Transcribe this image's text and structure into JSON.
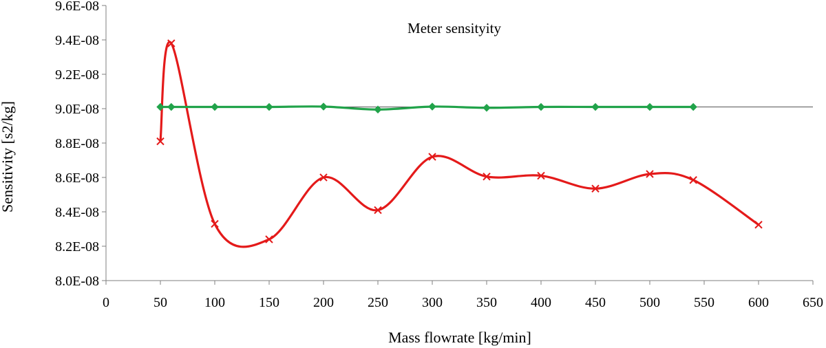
{
  "chart_data": {
    "type": "line",
    "title": "Meter sensityity",
    "xlabel": "Mass flowrate [kg/min]",
    "ylabel": "Sensitivity [s2/kg]",
    "xlim": [
      0,
      650
    ],
    "ylim": [
      8e-08,
      9.6e-08
    ],
    "x_ticks": [
      0,
      50,
      100,
      150,
      200,
      250,
      300,
      350,
      400,
      450,
      500,
      550,
      600,
      650
    ],
    "x_tick_labels": [
      "0",
      "50",
      "100",
      "150",
      "200",
      "250",
      "300",
      "350",
      "400",
      "450",
      "500",
      "550",
      "600",
      "650"
    ],
    "y_ticks": [
      8e-08,
      8.2e-08,
      8.4e-08,
      8.6e-08,
      8.8e-08,
      9e-08,
      9.2e-08,
      9.4e-08,
      9.6e-08
    ],
    "y_tick_labels": [
      "8.0E-08",
      "8.2E-08",
      "8.4E-08",
      "8.6E-08",
      "8.8E-08",
      "9.0E-08",
      "9.2E-08",
      "9.4E-08",
      "9.6E-08"
    ],
    "grid": false,
    "reference_line": {
      "y": 9.01e-08,
      "x_range": [
        50,
        650
      ],
      "color": "#555555"
    },
    "series": [
      {
        "color": "#e41a1a",
        "marker": "x",
        "smooth": true,
        "points": [
          {
            "x": 50,
            "y": 8.81e-08
          },
          {
            "x": 60,
            "y": 9.38e-08
          },
          {
            "x": 100,
            "y": 8.33e-08
          },
          {
            "x": 150,
            "y": 8.24e-08
          },
          {
            "x": 200,
            "y": 8.6e-08
          },
          {
            "x": 250,
            "y": 8.41e-08
          },
          {
            "x": 300,
            "y": 8.72e-08
          },
          {
            "x": 350,
            "y": 8.605e-08
          },
          {
            "x": 400,
            "y": 8.61e-08
          },
          {
            "x": 450,
            "y": 8.535e-08
          },
          {
            "x": 500,
            "y": 8.62e-08
          },
          {
            "x": 540,
            "y": 8.585e-08
          },
          {
            "x": 600,
            "y": 8.325e-08
          }
        ]
      },
      {
        "color": "#21a34a",
        "marker": "diamond",
        "smooth": true,
        "points": [
          {
            "x": 50,
            "y": 9.01e-08
          },
          {
            "x": 60,
            "y": 9.01e-08
          },
          {
            "x": 100,
            "y": 9.01e-08
          },
          {
            "x": 150,
            "y": 9.01e-08
          },
          {
            "x": 200,
            "y": 9.012e-08
          },
          {
            "x": 250,
            "y": 8.995e-08
          },
          {
            "x": 300,
            "y": 9.012e-08
          },
          {
            "x": 350,
            "y": 9.005e-08
          },
          {
            "x": 400,
            "y": 9.01e-08
          },
          {
            "x": 450,
            "y": 9.01e-08
          },
          {
            "x": 500,
            "y": 9.01e-08
          },
          {
            "x": 540,
            "y": 9.01e-08
          }
        ]
      }
    ]
  }
}
